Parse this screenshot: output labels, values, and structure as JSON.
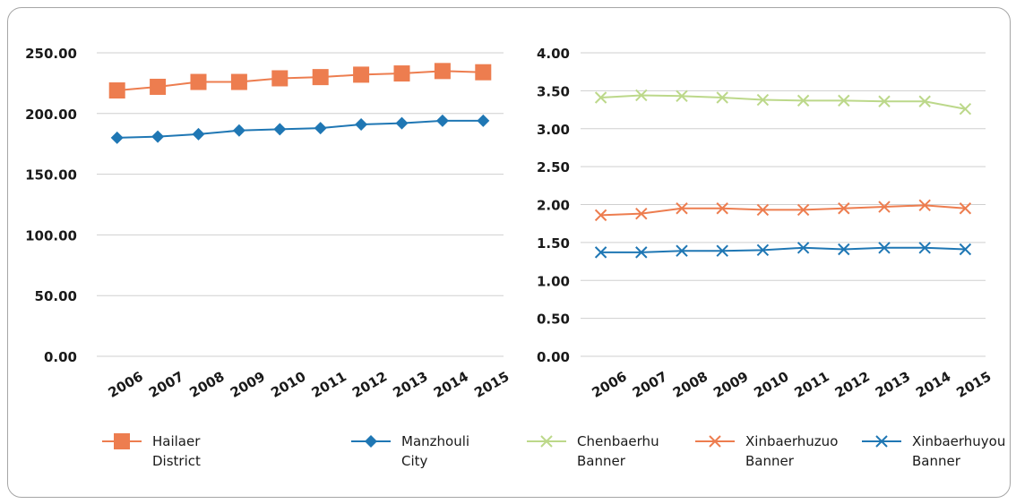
{
  "chart_data": [
    {
      "type": "line",
      "categories": [
        "2006",
        "2007",
        "2008",
        "2009",
        "2010",
        "2011",
        "2012",
        "2013",
        "2014",
        "2015"
      ],
      "ylim": [
        0,
        250
      ],
      "ytick_labels": [
        "0.00",
        "50.00",
        "100.00",
        "150.00",
        "200.00",
        "250.00"
      ],
      "yticks": [
        0,
        50,
        100,
        150,
        200,
        250
      ],
      "grid": true,
      "legend_position": "bottom",
      "series": [
        {
          "name": "Hailaer District",
          "color": "#ed7d4f",
          "marker": "square",
          "values": [
            219,
            222,
            226,
            226,
            229,
            230,
            232,
            233,
            235,
            234
          ]
        },
        {
          "name": "Manzhouli City",
          "color": "#1f77b4",
          "marker": "diamond",
          "values": [
            180,
            181,
            183,
            186,
            187,
            188,
            191,
            192,
            194,
            194
          ]
        }
      ]
    },
    {
      "type": "line",
      "categories": [
        "2006",
        "2007",
        "2008",
        "2009",
        "2010",
        "2011",
        "2012",
        "2013",
        "2014",
        "2015"
      ],
      "ylim": [
        0,
        4
      ],
      "ytick_labels": [
        "0.00",
        "0.50",
        "1.00",
        "1.50",
        "2.00",
        "2.50",
        "3.00",
        "3.50",
        "4.00"
      ],
      "yticks": [
        0,
        0.5,
        1,
        1.5,
        2,
        2.5,
        3,
        3.5,
        4
      ],
      "grid": true,
      "legend_position": "bottom",
      "series": [
        {
          "name": "Chenbaerhu Banner",
          "color": "#bcd88a",
          "marker": "x",
          "values": [
            3.41,
            3.44,
            3.43,
            3.41,
            3.38,
            3.37,
            3.37,
            3.36,
            3.36,
            3.26
          ]
        },
        {
          "name": "Xinbaerhuzuo Banner",
          "color": "#ed7d4f",
          "marker": "x",
          "values": [
            1.86,
            1.88,
            1.95,
            1.95,
            1.93,
            1.93,
            1.95,
            1.97,
            1.99,
            1.95
          ]
        },
        {
          "name": "Xinbaerhuyou Banner",
          "color": "#1f77b4",
          "marker": "x",
          "values": [
            1.37,
            1.37,
            1.39,
            1.39,
            1.4,
            1.43,
            1.41,
            1.43,
            1.43,
            1.41
          ]
        }
      ]
    }
  ],
  "legend": [
    {
      "label": "Hailaer District",
      "color": "#ed7d4f",
      "marker": "square"
    },
    {
      "label": "Manzhouli City",
      "color": "#1f77b4",
      "marker": "diamond"
    },
    {
      "label": "Chenbaerhu\nBanner",
      "color": "#bcd88a",
      "marker": "x"
    },
    {
      "label": "Xinbaerhuzuo\nBanner",
      "color": "#ed7d4f",
      "marker": "x"
    },
    {
      "label": "Xinbaerhuyou\nBanner",
      "color": "#1f77b4",
      "marker": "x"
    }
  ]
}
